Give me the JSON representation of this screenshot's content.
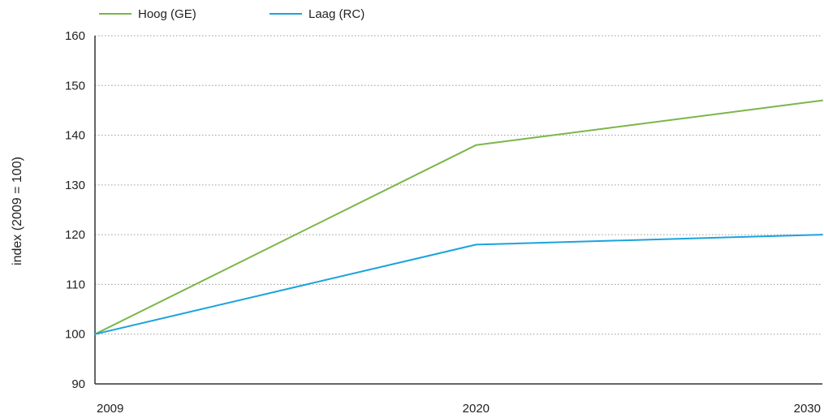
{
  "chart_data": {
    "type": "line",
    "title": "",
    "xlabel": "",
    "ylabel": "index (2009 = 100)",
    "x": [
      2009,
      2020,
      2030
    ],
    "x_tick_labels": [
      "2009",
      "2020",
      "2030"
    ],
    "ylim": [
      90,
      160
    ],
    "y_ticks": [
      90,
      100,
      110,
      120,
      130,
      140,
      150,
      160
    ],
    "y_tick_labels": [
      "90",
      "100",
      "110",
      "120",
      "130",
      "140",
      "150",
      "160"
    ],
    "grid": "horizontal dotted",
    "legend_position": "top-left",
    "series": [
      {
        "name": "Hoog (GE)",
        "color": "#7ab648",
        "values": [
          100,
          138,
          147
        ]
      },
      {
        "name": "Laag (RC)",
        "color": "#1aa3dd",
        "values": [
          100,
          118,
          120
        ]
      }
    ]
  }
}
